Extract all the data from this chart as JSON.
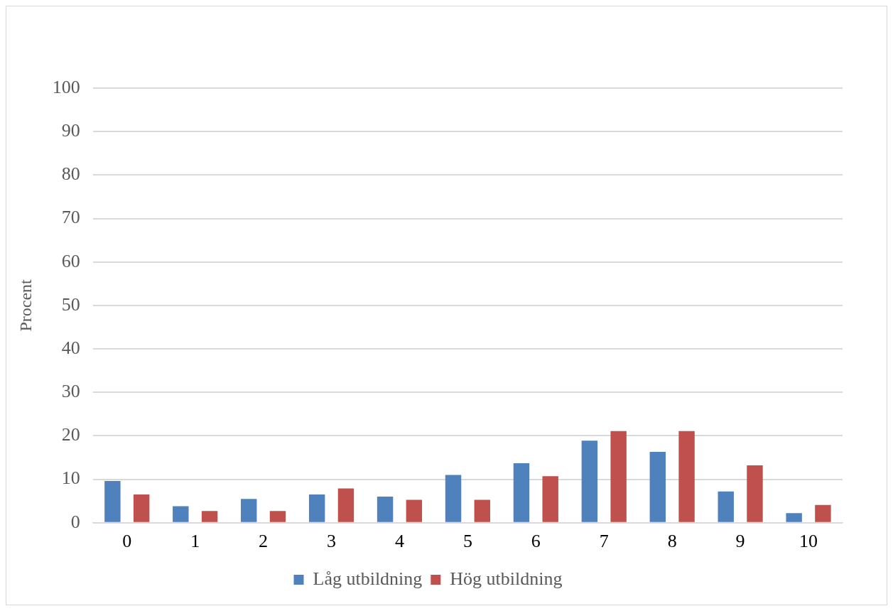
{
  "chart_data": {
    "type": "bar",
    "ylabel": "Procent",
    "categories": [
      "0",
      "1",
      "2",
      "3",
      "4",
      "5",
      "6",
      "7",
      "8",
      "9",
      "10"
    ],
    "series": [
      {
        "name": "Låg utbildning",
        "color": "#4f81bd",
        "values": [
          9.6,
          3.8,
          5.5,
          6.5,
          6,
          11,
          13.7,
          18.9,
          16.3,
          7.2,
          2.2
        ]
      },
      {
        "name": "Hög utbildning",
        "color": "#c0504d",
        "values": [
          6.5,
          2.7,
          2.7,
          7.9,
          5.3,
          5.3,
          10.7,
          21.1,
          21.1,
          13.2,
          4.1
        ]
      }
    ],
    "ylim": [
      0,
      100
    ],
    "yticks": [
      0,
      10,
      20,
      30,
      40,
      50,
      60,
      70,
      80,
      90,
      100
    ],
    "grid": "y",
    "legend": "bottom"
  }
}
